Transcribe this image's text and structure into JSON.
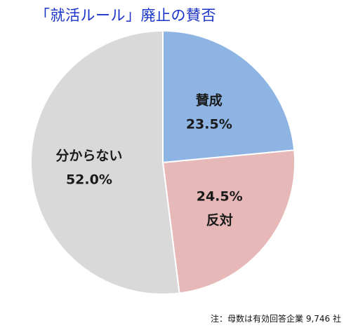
{
  "chart_data": {
    "type": "pie",
    "title": "「就活ルール」廃止の賛否",
    "slices": [
      {
        "name": "賛成",
        "value": 23.5,
        "value_label": "23.5%",
        "color": "#8eb4e3"
      },
      {
        "name": "反対",
        "value": 24.5,
        "value_label": "24.5%",
        "color": "#e6b9b8"
      },
      {
        "name": "分からない",
        "value": 52.0,
        "value_label": "52.0%",
        "color": "#d9d9d9"
      }
    ],
    "label_order": [
      [
        "name",
        "value_label"
      ],
      [
        "value_label",
        "name"
      ],
      [
        "name",
        "value_label"
      ]
    ],
    "start_angle_deg": 0,
    "direction": "clockwise",
    "legend": "none",
    "note": "注：母数は有効回答企業 9,746 社"
  }
}
